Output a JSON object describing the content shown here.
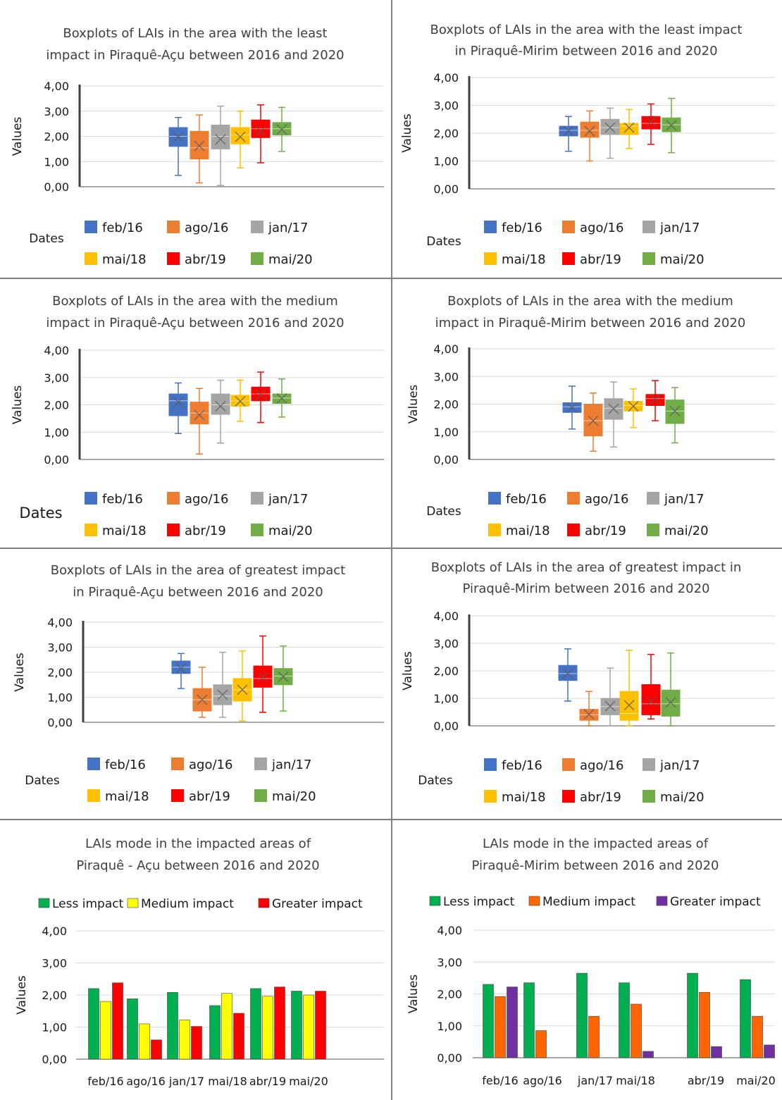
{
  "panels": [
    {
      "type": "boxplot",
      "title_lines": [
        "Boxplots of LAIs in the area with the least",
        "impact in Piraquê-Açu between  2016 and 2020"
      ],
      "ylabel": "Values",
      "xlabel": "Dates",
      "yticks": [
        "4,00",
        "3,00",
        "2,00",
        "1,00",
        "0,00"
      ],
      "legend": [
        "feb/16",
        "ago/16",
        "jan/17",
        "mai/18",
        "abr/19",
        "mai/20"
      ]
    },
    {
      "type": "boxplot",
      "title_lines": [
        "Boxplots of LAIs in the area with the least impact",
        "in Piraquê-Mirim between  2016 and 2020"
      ],
      "ylabel": "Values",
      "xlabel": "Dates",
      "yticks": [
        "4,00",
        "3,00",
        "2,00",
        "1,00",
        "0,00"
      ],
      "legend": [
        "feb/16",
        "ago/16",
        "jan/17",
        "mai/18",
        "abr/19",
        "mai/20"
      ]
    },
    {
      "type": "boxplot",
      "title_lines": [
        "Boxplots of LAIs in the area with the medium",
        "impact in Piraquê-Açu between  2016 and 2020"
      ],
      "ylabel": "Values",
      "xlabel": "Dates",
      "yticks": [
        "4,00",
        "3,00",
        "2,00",
        "1,00",
        "0,00"
      ],
      "legend": [
        "feb/16",
        "ago/16",
        "jan/17",
        "mai/18",
        "abr/19",
        "mai/20"
      ]
    },
    {
      "type": "boxplot",
      "title_lines": [
        "Boxplots of LAIs in the area with the medium",
        "impact in Piraquê-Mirim between  2016 and 2020"
      ],
      "ylabel": "Values",
      "xlabel": "Dates",
      "yticks": [
        "4,00",
        "3,00",
        "2,00",
        "1,00",
        "0,00"
      ],
      "legend": [
        "feb/16",
        "ago/16",
        "jan/17",
        "mai/18",
        "abr/19",
        "mai/20"
      ]
    },
    {
      "type": "boxplot",
      "title_lines": [
        "Boxplots of LAIs in the area of greatest impact",
        "in Piraquê-Açu between  2016 and 2020"
      ],
      "ylabel": "Values",
      "xlabel": "Dates",
      "yticks": [
        "4,00",
        "3,00",
        "2,00",
        "1,00",
        "0,00"
      ],
      "legend": [
        "feb/16",
        "ago/16",
        "jan/17",
        "mai/18",
        "abr/19",
        "mai/20"
      ]
    },
    {
      "type": "boxplot",
      "title_lines": [
        "Boxplots of LAIs in the area of greatest impact in",
        "Piraquê-Mirim between  2016 and 2020"
      ],
      "ylabel": "Values",
      "xlabel": "Dates",
      "yticks": [
        "4,00",
        "3,00",
        "2,00",
        "1,00",
        "0,00"
      ],
      "legend": [
        "feb/16",
        "ago/16",
        "jan/17",
        "mai/18",
        "abr/19",
        "mai/20"
      ]
    },
    {
      "type": "bar",
      "title_lines": [
        "LAIs mode in the impacted areas of",
        "Piraquê - Açu between  2016 and 2020"
      ],
      "ylabel": "Values",
      "yticks": [
        "4,00",
        "3,00",
        "2,00",
        "1,00",
        "0,00"
      ],
      "legend": [
        "Less impact",
        "Medium impact",
        "Greater impact"
      ],
      "categories": [
        "feb/16",
        "ago/16",
        "jan/17",
        "mai/18",
        "abr/19",
        "mai/20"
      ]
    },
    {
      "type": "bar",
      "title_lines": [
        "LAIs mode in the impacted areas of",
        "Piraquê-Mirim between  2016 and 2020"
      ],
      "ylabel": "Values",
      "yticks": [
        "4,00",
        "3,00",
        "2,00",
        "1,00",
        "0,00"
      ],
      "legend": [
        "Less impact",
        "Medium impact",
        "Greater impact"
      ],
      "categories": [
        "feb/16",
        "ago/16",
        "jan/17",
        "mai/18",
        "abr/19",
        "mai/20"
      ]
    }
  ],
  "colors": {
    "box": [
      "#4472C4",
      "#ED7D31",
      "#A5A5A5",
      "#FFC000",
      "#FF0000",
      "#70AD47"
    ],
    "bar_acu": [
      "#00B050",
      "#FFFF00",
      "#FF0000"
    ],
    "bar_mirim": [
      "#00B050",
      "#FF6600",
      "#7030A0"
    ]
  },
  "chart_data": [
    {
      "type": "boxplot",
      "title": "Boxplots of LAIs in the area with the least impact in Piraquê-Açu between  2016 and 2020",
      "ylabel": "Values",
      "xlabel": "Dates",
      "ylim": [
        0,
        4
      ],
      "categories": [
        "feb/16",
        "ago/16",
        "jan/17",
        "mai/18",
        "abr/19",
        "mai/20"
      ],
      "boxes": [
        {
          "min": 0.45,
          "q1": 1.6,
          "median": 2.0,
          "mean": 1.97,
          "q3": 2.35,
          "max": 2.75
        },
        {
          "min": 0.15,
          "q1": 1.1,
          "median": 1.55,
          "mean": 1.62,
          "q3": 2.2,
          "max": 2.85
        },
        {
          "min": 0.05,
          "q1": 1.5,
          "median": 2.0,
          "mean": 1.88,
          "q3": 2.45,
          "max": 3.2
        },
        {
          "min": 0.75,
          "q1": 1.7,
          "median": 2.05,
          "mean": 1.98,
          "q3": 2.35,
          "max": 3.0
        },
        {
          "min": 0.95,
          "q1": 1.95,
          "median": 2.3,
          "mean": 2.2,
          "q3": 2.65,
          "max": 3.25
        },
        {
          "min": 1.4,
          "q1": 2.05,
          "median": 2.3,
          "mean": 2.27,
          "q3": 2.55,
          "max": 3.15
        }
      ]
    },
    {
      "type": "boxplot",
      "title": "Boxplots of LAIs in the area with the least impact in Piraquê-Mirim between  2016 and 2020",
      "ylabel": "Values",
      "xlabel": "Dates",
      "ylim": [
        0,
        4
      ],
      "categories": [
        "feb/16",
        "ago/16",
        "jan/17",
        "mai/18",
        "abr/19",
        "mai/20"
      ],
      "boxes": [
        {
          "min": 1.35,
          "q1": 1.9,
          "median": 2.1,
          "mean": 2.08,
          "q3": 2.25,
          "max": 2.6
        },
        {
          "min": 1.0,
          "q1": 1.85,
          "median": 2.1,
          "mean": 2.07,
          "q3": 2.4,
          "max": 2.8
        },
        {
          "min": 1.1,
          "q1": 1.95,
          "median": 2.2,
          "mean": 2.2,
          "q3": 2.5,
          "max": 2.9
        },
        {
          "min": 1.45,
          "q1": 1.95,
          "median": 2.25,
          "mean": 2.2,
          "q3": 2.35,
          "max": 2.85
        },
        {
          "min": 1.6,
          "q1": 2.15,
          "median": 2.35,
          "mean": 2.4,
          "q3": 2.6,
          "max": 3.05
        },
        {
          "min": 1.3,
          "q1": 2.05,
          "median": 2.3,
          "mean": 2.28,
          "q3": 2.55,
          "max": 3.25
        }
      ]
    },
    {
      "type": "boxplot",
      "title": "Boxplots of LAIs in the area with the medium impact in Piraquê-Açu between  2016 and 2020",
      "ylabel": "Values",
      "xlabel": "Dates",
      "ylim": [
        0,
        4
      ],
      "categories": [
        "feb/16",
        "ago/16",
        "jan/17",
        "mai/18",
        "abr/19",
        "mai/20"
      ],
      "boxes": [
        {
          "min": 0.95,
          "q1": 1.6,
          "median": 2.15,
          "mean": 2.1,
          "q3": 2.4,
          "max": 2.8
        },
        {
          "min": 0.2,
          "q1": 1.3,
          "median": 1.7,
          "mean": 1.63,
          "q3": 2.1,
          "max": 2.6
        },
        {
          "min": 0.6,
          "q1": 1.65,
          "median": 2.0,
          "mean": 1.95,
          "q3": 2.4,
          "max": 2.9
        },
        {
          "min": 1.4,
          "q1": 1.95,
          "median": 2.15,
          "mean": 2.13,
          "q3": 2.35,
          "max": 2.9
        },
        {
          "min": 1.35,
          "q1": 2.15,
          "median": 2.4,
          "mean": 2.37,
          "q3": 2.65,
          "max": 3.2
        },
        {
          "min": 1.55,
          "q1": 2.05,
          "median": 2.25,
          "mean": 2.23,
          "q3": 2.4,
          "max": 2.95
        }
      ]
    },
    {
      "type": "boxplot",
      "title": "Boxplots of LAIs in the area with the medium impact in Piraquê-Mirim between  2016 and 2020",
      "ylabel": "Values",
      "xlabel": "Dates",
      "ylim": [
        0,
        4
      ],
      "categories": [
        "feb/16",
        "ago/16",
        "jan/17",
        "mai/18",
        "abr/19",
        "mai/20"
      ],
      "boxes": [
        {
          "min": 1.1,
          "q1": 1.7,
          "median": 1.9,
          "mean": 1.87,
          "q3": 2.05,
          "max": 2.65
        },
        {
          "min": 0.3,
          "q1": 0.85,
          "median": 1.4,
          "mean": 1.4,
          "q3": 2.0,
          "max": 2.4
        },
        {
          "min": 0.45,
          "q1": 1.45,
          "median": 1.85,
          "mean": 1.83,
          "q3": 2.2,
          "max": 2.8
        },
        {
          "min": 1.15,
          "q1": 1.75,
          "median": 1.95,
          "mean": 1.92,
          "q3": 2.1,
          "max": 2.55
        },
        {
          "min": 1.4,
          "q1": 1.95,
          "median": 2.2,
          "mean": 2.18,
          "q3": 2.35,
          "max": 2.85
        },
        {
          "min": 0.6,
          "q1": 1.3,
          "median": 1.75,
          "mean": 1.75,
          "q3": 2.15,
          "max": 2.6
        }
      ]
    },
    {
      "type": "boxplot",
      "title": "Boxplots of LAIs in the area of greatest impact in Piraquê-Açu between  2016 and 2020",
      "ylabel": "Values",
      "xlabel": "Dates",
      "ylim": [
        0,
        4
      ],
      "categories": [
        "feb/16",
        "ago/16",
        "jan/17",
        "mai/18",
        "abr/19",
        "mai/20"
      ],
      "boxes": [
        {
          "min": 1.35,
          "q1": 1.95,
          "median": 2.2,
          "mean": 2.15,
          "q3": 2.45,
          "max": 2.75
        },
        {
          "min": 0.2,
          "q1": 0.45,
          "median": 0.9,
          "mean": 0.9,
          "q3": 1.35,
          "max": 2.2
        },
        {
          "min": 0.2,
          "q1": 0.7,
          "median": 1.05,
          "mean": 1.1,
          "q3": 1.5,
          "max": 2.8
        },
        {
          "min": 0.05,
          "q1": 0.85,
          "median": 1.3,
          "mean": 1.3,
          "q3": 1.75,
          "max": 2.85
        },
        {
          "min": 0.4,
          "q1": 1.4,
          "median": 1.75,
          "mean": 1.8,
          "q3": 2.25,
          "max": 3.45
        },
        {
          "min": 0.45,
          "q1": 1.5,
          "median": 1.85,
          "mean": 1.82,
          "q3": 2.15,
          "max": 3.05
        }
      ]
    },
    {
      "type": "boxplot",
      "title": "Boxplots of LAIs in the area of greatest impact in Piraquê-Mirim between  2016 and 2020",
      "ylabel": "Values",
      "xlabel": "Dates",
      "ylim": [
        0,
        4
      ],
      "categories": [
        "feb/16",
        "ago/16",
        "jan/17",
        "mai/18",
        "abr/19",
        "mai/20"
      ],
      "boxes": [
        {
          "min": 0.9,
          "q1": 1.65,
          "median": 1.9,
          "mean": 1.9,
          "q3": 2.2,
          "max": 2.8
        },
        {
          "min": 0.0,
          "q1": 0.2,
          "median": 0.4,
          "mean": 0.42,
          "q3": 0.6,
          "max": 1.25
        },
        {
          "min": 0.0,
          "q1": 0.4,
          "median": 0.7,
          "mean": 0.72,
          "q3": 1.0,
          "max": 2.1
        },
        {
          "min": 0.0,
          "q1": 0.2,
          "median": 0.45,
          "mean": 0.75,
          "q3": 1.25,
          "max": 2.75
        },
        {
          "min": 0.25,
          "q1": 0.4,
          "median": 0.8,
          "mean": 0.88,
          "q3": 1.5,
          "max": 2.6
        },
        {
          "min": 0.0,
          "q1": 0.35,
          "median": 0.8,
          "mean": 0.85,
          "q3": 1.3,
          "max": 2.65
        }
      ]
    },
    {
      "type": "bar",
      "title": "LAIs mode in the impacted areas of Piraquê - Açu between  2016 and 2020",
      "ylabel": "Values",
      "ylim": [
        0,
        4
      ],
      "categories": [
        "feb/16",
        "ago/16",
        "jan/17",
        "mai/18",
        "abr/19",
        "mai/20"
      ],
      "series": [
        {
          "name": "Less impact",
          "values": [
            2.2,
            1.88,
            2.08,
            1.67,
            2.2,
            2.12
          ]
        },
        {
          "name": "Medium impact",
          "values": [
            1.8,
            1.1,
            1.22,
            2.05,
            1.96,
            2.0
          ]
        },
        {
          "name": "Greater impact",
          "values": [
            2.38,
            0.6,
            1.02,
            1.43,
            2.25,
            2.12
          ]
        }
      ]
    },
    {
      "type": "bar",
      "title": "LAIs mode in the impacted areas of Piraquê-Mirim between  2016 and 2020",
      "ylabel": "Values",
      "ylim": [
        0,
        4
      ],
      "categories": [
        "feb/16",
        "ago/16",
        "jan/17",
        "mai/18",
        "abr/19",
        "mai/20"
      ],
      "series": [
        {
          "name": "Less impact",
          "values": [
            2.3,
            2.35,
            2.65,
            2.35,
            2.65,
            2.45
          ]
        },
        {
          "name": "Medium impact",
          "values": [
            1.92,
            0.85,
            1.3,
            1.68,
            2.05,
            1.3
          ]
        },
        {
          "name": "Greater impact",
          "values": [
            2.22,
            0.0,
            0.0,
            0.2,
            0.35,
            0.4
          ]
        }
      ]
    }
  ]
}
